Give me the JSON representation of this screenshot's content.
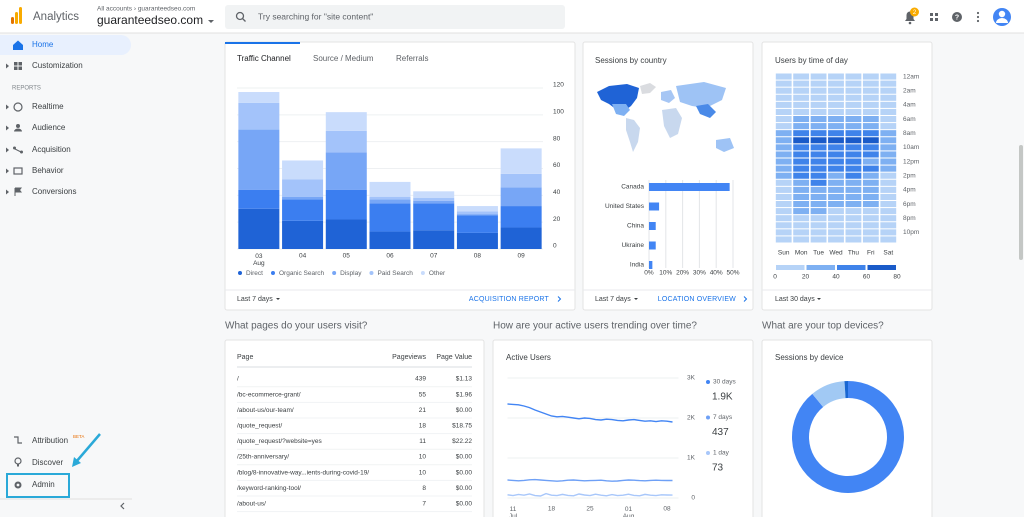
{
  "header": {
    "product": "Analytics",
    "breadcrumb": "All accounts › guaranteedseo.com",
    "account": "guaranteedseo.com",
    "search_placeholder": "Try searching for \"site content\"",
    "notification_count": 2
  },
  "sidebar": {
    "home": "Home",
    "customization": "Customization",
    "section": "REPORTS",
    "reports": [
      "Realtime",
      "Audience",
      "Acquisition",
      "Behavior",
      "Conversions"
    ],
    "attribution": "Attribution",
    "beta": "BETA",
    "discover": "Discover",
    "admin": "Admin"
  },
  "cards": {
    "traffic": {
      "tabs": [
        "Traffic Channel",
        "Source / Medium",
        "Referrals"
      ],
      "range": "Last 7 days",
      "link": "ACQUISITION REPORT"
    },
    "country": {
      "range": "Last 7 days",
      "link": "LOCATION OVERVIEW"
    },
    "time": {
      "range": "Last 30 days"
    },
    "pages_heading": "What pages do your users visit?",
    "active_heading": "How are your active users trending over time?",
    "devices_heading": "What are your top devices?"
  },
  "pages_table": {
    "columns": [
      "Page",
      "Pageviews",
      "Page Value"
    ],
    "rows": [
      [
        "/",
        439,
        "$1.13"
      ],
      [
        "/bc-ecommerce-grant/",
        55,
        "$1.96"
      ],
      [
        "/about-us/our-team/",
        21,
        "$0.00"
      ],
      [
        "/quote_request/",
        18,
        "$18.75"
      ],
      [
        "/quote_request/?website=yes",
        11,
        "$22.22"
      ],
      [
        "/25th-anniversary/",
        10,
        "$0.00"
      ],
      [
        "/blog/8-innovative-way...ients-during-covid-19/",
        10,
        "$0.00"
      ],
      [
        "/keyword-ranking-tool/",
        8,
        "$0.00"
      ],
      [
        "/about-us/",
        7,
        "$0.00"
      ]
    ]
  },
  "chart_data": [
    {
      "type": "bar",
      "stacked": true,
      "categories": [
        "03\nAug",
        "04",
        "05",
        "06",
        "07",
        "08",
        "09"
      ],
      "series": [
        {
          "name": "Direct",
          "color": "#1f63d6",
          "values": [
            30,
            21,
            22,
            13,
            14,
            12,
            16
          ]
        },
        {
          "name": "Organic Search",
          "color": "#3b7ef0",
          "values": [
            14,
            16,
            22,
            21,
            20,
            13,
            16
          ]
        },
        {
          "name": "Display",
          "color": "#77a6f6",
          "values": [
            45,
            2,
            28,
            3,
            2,
            1,
            14
          ]
        },
        {
          "name": "Paid Search",
          "color": "#a3c3fa",
          "values": [
            20,
            13,
            16,
            2,
            2,
            2,
            10
          ]
        },
        {
          "name": "Other",
          "color": "#c9dcfc",
          "values": [
            8,
            14,
            14,
            11,
            5,
            4,
            19
          ]
        }
      ],
      "ylim": [
        0,
        120
      ],
      "yticks": [
        0,
        20,
        40,
        60,
        80,
        100,
        120
      ],
      "grid": true
    },
    {
      "type": "hbar",
      "title": "Sessions by country",
      "categories": [
        "Canada",
        "United States",
        "China",
        "Ukraine",
        "India"
      ],
      "values": [
        48,
        6,
        4,
        4,
        2
      ],
      "color": "#4285f4",
      "xlim": [
        0,
        50
      ],
      "xticks": [
        {
          "value": 0,
          "label": "0%"
        },
        {
          "value": 10,
          "label": "10%"
        },
        {
          "value": 20,
          "label": "20%"
        },
        {
          "value": 30,
          "label": "30%"
        },
        {
          "value": 40,
          "label": "40%"
        },
        {
          "value": 50,
          "label": "50%"
        }
      ],
      "grid": true
    },
    {
      "type": "heatmap",
      "title": "Users by time of day",
      "categories": [
        "Sun",
        "Mon",
        "Tue",
        "Wed",
        "Thu",
        "Fri",
        "Sat"
      ],
      "rows": [
        "12am",
        null,
        "2am",
        null,
        "4am",
        null,
        "6am",
        null,
        "8am",
        null,
        "10am",
        null,
        "12pm",
        null,
        "2pm",
        null,
        "4pm",
        null,
        "6pm",
        null,
        "8pm",
        null,
        "10pm",
        null
      ],
      "values": [
        [
          8,
          7,
          6,
          5,
          6,
          8,
          10,
          14,
          22,
          32,
          28,
          26,
          24,
          22,
          20,
          18,
          16,
          14,
          12,
          12,
          10,
          9,
          8,
          8
        ],
        [
          12,
          10,
          9,
          8,
          10,
          14,
          22,
          34,
          48,
          72,
          52,
          48,
          42,
          44,
          40,
          38,
          36,
          30,
          24,
          20,
          18,
          16,
          14,
          12
        ],
        [
          11,
          10,
          8,
          8,
          9,
          15,
          24,
          36,
          50,
          74,
          55,
          50,
          44,
          46,
          42,
          40,
          35,
          28,
          22,
          20,
          17,
          15,
          13,
          12
        ],
        [
          12,
          9,
          8,
          7,
          10,
          13,
          21,
          33,
          47,
          70,
          50,
          47,
          41,
          43,
          39,
          37,
          34,
          29,
          23,
          19,
          18,
          15,
          13,
          11
        ],
        [
          10,
          9,
          8,
          7,
          9,
          14,
          23,
          35,
          49,
          71,
          53,
          49,
          43,
          45,
          41,
          38,
          35,
          29,
          23,
          19,
          17,
          16,
          14,
          12
        ],
        [
          11,
          9,
          8,
          7,
          9,
          13,
          20,
          31,
          44,
          66,
          48,
          44,
          38,
          40,
          36,
          33,
          30,
          25,
          20,
          17,
          15,
          14,
          12,
          11
        ],
        [
          9,
          8,
          7,
          6,
          6,
          8,
          11,
          15,
          21,
          30,
          27,
          25,
          23,
          21,
          19,
          17,
          15,
          13,
          12,
          11,
          10,
          9,
          8,
          8
        ]
      ],
      "color_scale": {
        "ticks": [
          0,
          20,
          40,
          60,
          80
        ],
        "colors": [
          "#b6d3f7",
          "#7eb0f2",
          "#3f83ea",
          "#1a5bc9"
        ]
      }
    },
    {
      "type": "line",
      "title": "Active Users",
      "categories": [
        null,
        "11\nJul",
        null,
        null,
        null,
        null,
        null,
        null,
        "18",
        null,
        null,
        null,
        null,
        null,
        null,
        "25",
        null,
        null,
        null,
        null,
        null,
        null,
        "01\nAug",
        null,
        null,
        null,
        null,
        null,
        null,
        "08",
        null
      ],
      "series": [
        {
          "name": "30 days",
          "total": "1.9K",
          "color": "#4285f4",
          "values": [
            2350,
            2340,
            2330,
            2300,
            2260,
            2200,
            2150,
            2100,
            2050,
            2030,
            2040,
            2020,
            2000,
            1980,
            2000,
            1990,
            1960,
            1950,
            1970,
            1960,
            1940,
            1930,
            1950,
            1960,
            1940,
            1920,
            1930,
            1910,
            1930,
            1920,
            1900
          ]
        },
        {
          "name": "7 days",
          "total": "437",
          "color": "#6ea0f6",
          "values": [
            450,
            440,
            430,
            440,
            455,
            460,
            450,
            440,
            430,
            420,
            430,
            445,
            450,
            440,
            430,
            435,
            440,
            445,
            430,
            420,
            425,
            440,
            450,
            445,
            435,
            430,
            440,
            445,
            440,
            438,
            437
          ]
        },
        {
          "name": "1 day",
          "total": "73",
          "color": "#a8c7fa",
          "values": [
            80,
            60,
            90,
            70,
            100,
            60,
            50,
            110,
            70,
            60,
            90,
            65,
            55,
            100,
            75,
            60,
            95,
            70,
            55,
            85,
            60,
            70,
            95,
            65,
            55,
            90,
            70,
            60,
            80,
            75,
            73
          ]
        }
      ],
      "ylim": [
        0,
        3000
      ],
      "yticks": [
        0,
        {
          "value": 1000,
          "label": "1K"
        },
        {
          "value": 2000,
          "label": "2K"
        },
        {
          "value": 3000,
          "label": "3K"
        }
      ],
      "grid": true
    },
    {
      "type": "pie",
      "title": "Sessions by device",
      "donut": true,
      "values": [
        89,
        10,
        1
      ],
      "colors": [
        "#4285f4",
        "#a1c9f4",
        "#1967d2"
      ]
    }
  ]
}
